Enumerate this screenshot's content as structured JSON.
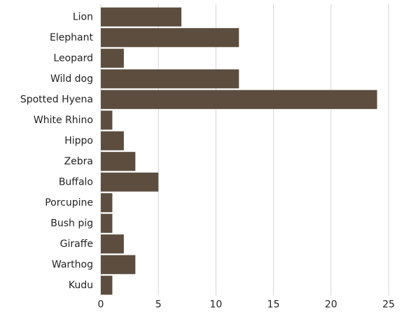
{
  "chart_data": {
    "type": "bar",
    "orientation": "horizontal",
    "categories": [
      "Lion",
      "Elephant",
      "Leopard",
      "Wild dog",
      "Spotted Hyena",
      "White Rhino",
      "Hippo",
      "Zebra",
      "Buffalo",
      "Porcupine",
      "Bush pig",
      "Giraffe",
      "Warthog",
      "Kudu"
    ],
    "values": [
      7,
      12,
      2,
      12,
      24,
      1,
      2,
      3,
      5,
      1,
      1,
      2,
      3,
      1
    ],
    "color": "#5c4d3f",
    "xlim": [
      0,
      25
    ],
    "xticks": [
      0,
      5,
      10,
      15,
      20,
      25
    ],
    "grid": true
  }
}
